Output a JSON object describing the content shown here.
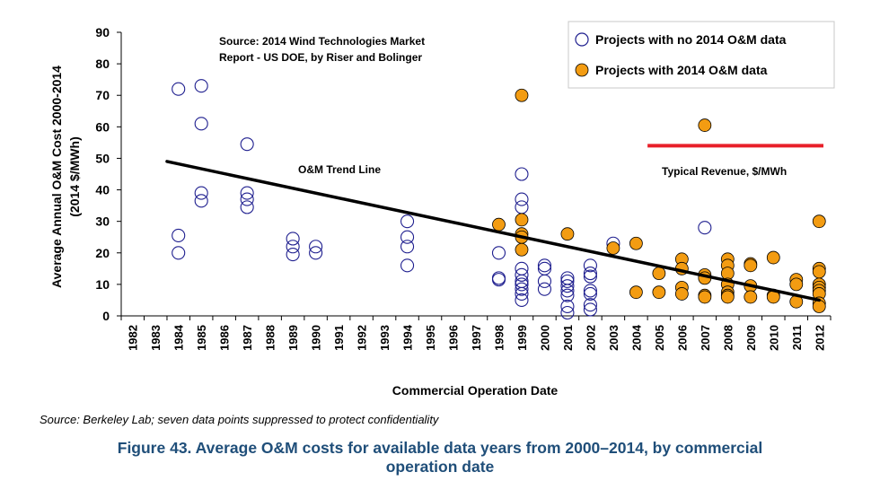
{
  "chart_data": {
    "type": "scatter",
    "title": "",
    "xlabel": "Commercial Operation Date",
    "ylabel": "Average Annual O&M Cost 2000-2014",
    "ylabel_unit": "(2014 $/MWh)",
    "ylim": [
      0,
      90
    ],
    "yticks": [
      "0",
      "10",
      "20",
      "30",
      "40",
      "50",
      "60",
      "70",
      "80",
      "90"
    ],
    "xcategories": [
      "1982",
      "1983",
      "1984",
      "1985",
      "1986",
      "1987",
      "1988",
      "1989",
      "1990",
      "1991",
      "1992",
      "1993",
      "1994",
      "1995",
      "1996",
      "1997",
      "1998",
      "1999",
      "2000",
      "2001",
      "2002",
      "2003",
      "2004",
      "2005",
      "2006",
      "2007",
      "2008",
      "2009",
      "2010",
      "2011",
      "2012"
    ],
    "source_box": [
      "Source: 2014 Wind Technologies Market",
      "Report  - US DOE, by Riser and Bolinger"
    ],
    "series": [
      {
        "name": "Projects with no 2014 O&M data",
        "marker": "open-circle",
        "color": "#1f1f8f",
        "points": [
          [
            1984,
            72
          ],
          [
            1984,
            25.5
          ],
          [
            1984,
            20
          ],
          [
            1985,
            73
          ],
          [
            1985,
            61
          ],
          [
            1985,
            39
          ],
          [
            1985,
            36.5
          ],
          [
            1987,
            54.5
          ],
          [
            1987,
            39
          ],
          [
            1987,
            37
          ],
          [
            1987,
            34.5
          ],
          [
            1989,
            24.5
          ],
          [
            1989,
            22
          ],
          [
            1989,
            19.5
          ],
          [
            1990,
            22
          ],
          [
            1990,
            20
          ],
          [
            1994,
            30
          ],
          [
            1994,
            25
          ],
          [
            1994,
            22
          ],
          [
            1994,
            16
          ],
          [
            1998,
            20
          ],
          [
            1998,
            12
          ],
          [
            1998,
            11.5
          ],
          [
            1999,
            45
          ],
          [
            1999,
            37
          ],
          [
            1999,
            34.5
          ],
          [
            1999,
            15
          ],
          [
            1999,
            13
          ],
          [
            1999,
            11
          ],
          [
            1999,
            10
          ],
          [
            1999,
            8.5
          ],
          [
            1999,
            7
          ],
          [
            1999,
            5
          ],
          [
            2000,
            16
          ],
          [
            2000,
            15
          ],
          [
            2000,
            11
          ],
          [
            2000,
            8.5
          ],
          [
            2001,
            12
          ],
          [
            2001,
            11
          ],
          [
            2001,
            9.5
          ],
          [
            2001,
            8
          ],
          [
            2001,
            6.5
          ],
          [
            2001,
            3
          ],
          [
            2001,
            1
          ],
          [
            2002,
            16
          ],
          [
            2002,
            13.5
          ],
          [
            2002,
            12.5
          ],
          [
            2002,
            8
          ],
          [
            2002,
            7
          ],
          [
            2002,
            3.5
          ],
          [
            2002,
            2
          ],
          [
            2003,
            23
          ],
          [
            2007,
            28
          ]
        ]
      },
      {
        "name": "Projects with 2014 O&M data",
        "marker": "filled-circle",
        "color": "#f39c12",
        "points": [
          [
            1998,
            29
          ],
          [
            1999,
            70
          ],
          [
            1999,
            30.5
          ],
          [
            1999,
            26
          ],
          [
            1999,
            25
          ],
          [
            1999,
            21
          ],
          [
            2001,
            26
          ],
          [
            2003,
            21.5
          ],
          [
            2004,
            23
          ],
          [
            2004,
            7.5
          ],
          [
            2005,
            13.5
          ],
          [
            2005,
            7.5
          ],
          [
            2006,
            18
          ],
          [
            2006,
            15
          ],
          [
            2006,
            9
          ],
          [
            2006,
            7
          ],
          [
            2007,
            60.5
          ],
          [
            2007,
            13
          ],
          [
            2007,
            12
          ],
          [
            2007,
            6.5
          ],
          [
            2007,
            6
          ],
          [
            2008,
            18
          ],
          [
            2008,
            16
          ],
          [
            2008,
            13.5
          ],
          [
            2008,
            10
          ],
          [
            2008,
            7.5
          ],
          [
            2008,
            6.5
          ],
          [
            2008,
            6
          ],
          [
            2009,
            16.5
          ],
          [
            2009,
            16
          ],
          [
            2009,
            9.5
          ],
          [
            2009,
            6
          ],
          [
            2010,
            18.5
          ],
          [
            2010,
            6.5
          ],
          [
            2010,
            6
          ],
          [
            2011,
            11.5
          ],
          [
            2011,
            10
          ],
          [
            2011,
            4.5
          ],
          [
            2012,
            30
          ],
          [
            2012,
            15
          ],
          [
            2012,
            14
          ],
          [
            2012,
            10
          ],
          [
            2012,
            9
          ],
          [
            2012,
            8
          ],
          [
            2012,
            7
          ],
          [
            2012,
            4
          ],
          [
            2012,
            3
          ]
        ]
      }
    ],
    "trend_line": {
      "label": "O&M Trend Line",
      "from": [
        1983.5,
        49
      ],
      "to": [
        2012,
        5
      ],
      "color": "#000000"
    },
    "reference_line": {
      "label": "Typical Revenue, $/MWh",
      "from": [
        2005,
        54
      ],
      "to": [
        2012,
        54
      ],
      "color": "#e8202a"
    },
    "legend": {
      "position": "top-right"
    }
  },
  "footer": {
    "source": "Source: Berkeley Lab; seven data points suppressed to protect confidentiality",
    "caption_line1": "Figure 43. Average O&M costs for available data years from 2000–2014, by commercial",
    "caption_line2": "operation date"
  }
}
